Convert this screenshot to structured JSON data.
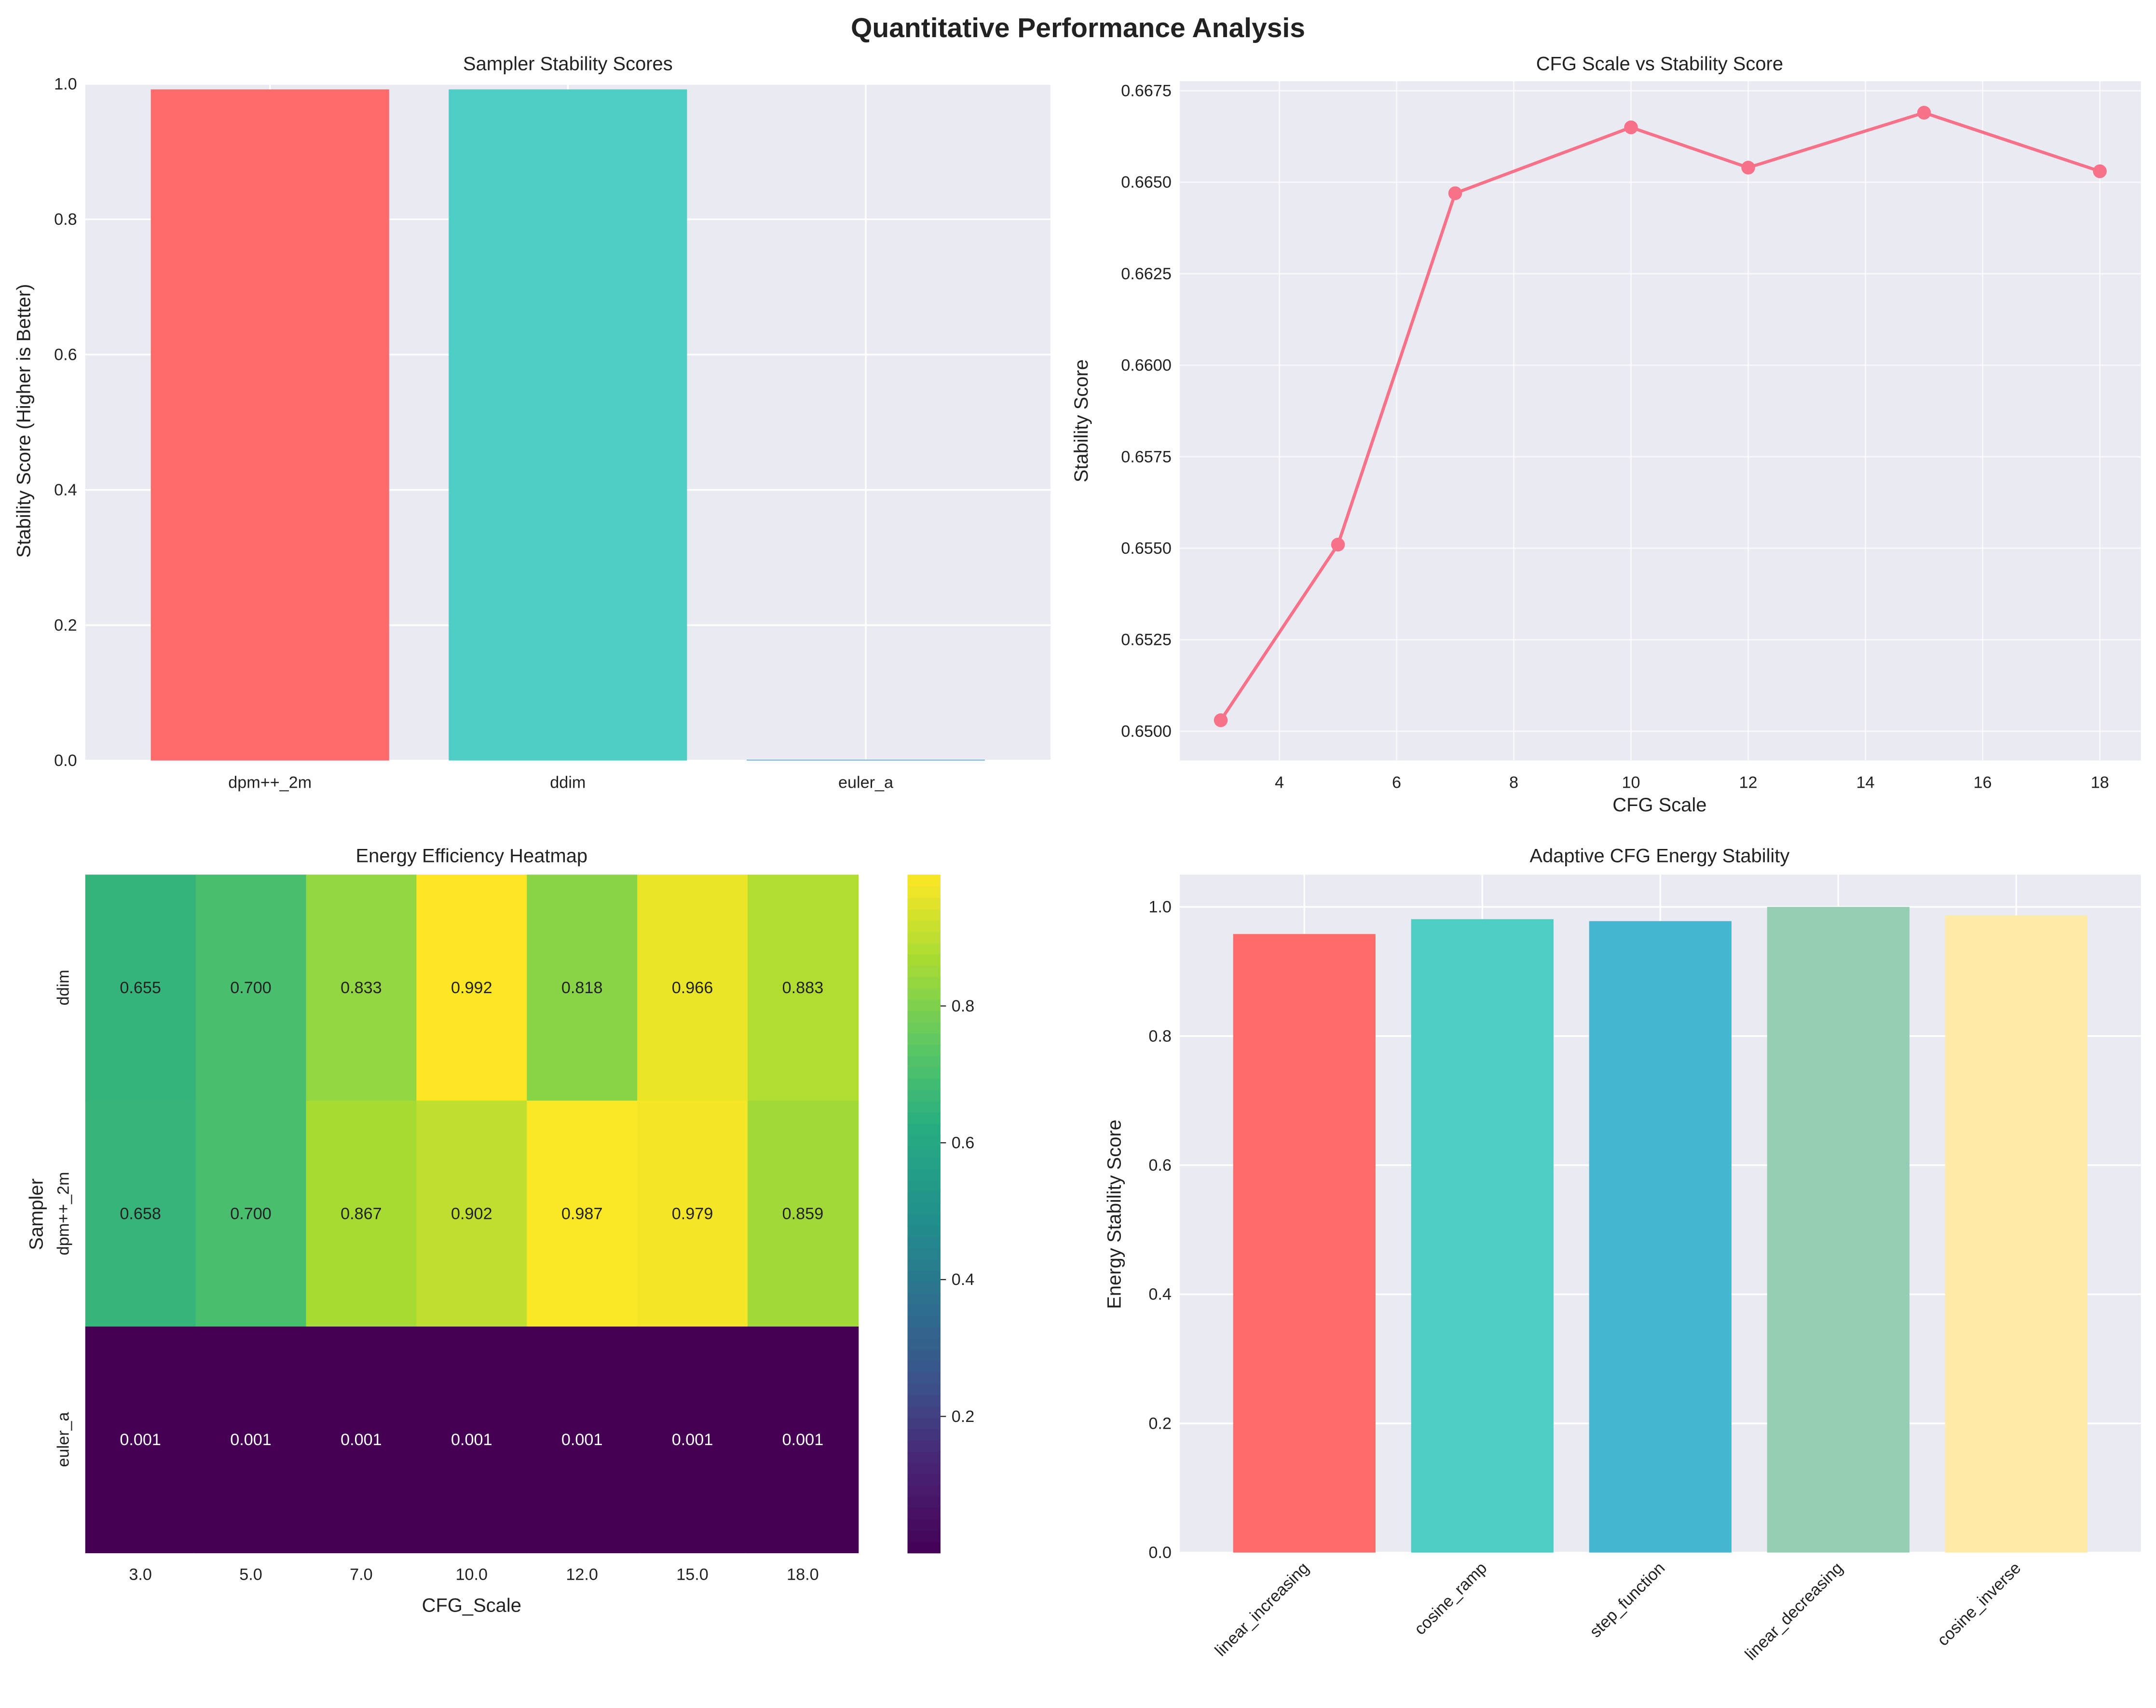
{
  "title": "Quantitative Performance Analysis",
  "chart_data": [
    {
      "type": "bar",
      "title": "Sampler Stability Scores",
      "xlabel": "",
      "ylabel": "Stability Score (Higher is Better)",
      "categories": [
        "dpm++_2m",
        "ddim",
        "euler_a"
      ],
      "values": [
        0.992,
        0.992,
        0.001
      ],
      "colors": [
        "#FF6B6B",
        "#4ECDC4",
        "#45B7D1"
      ],
      "ylim": [
        0,
        1
      ],
      "yticks": [
        "0.0",
        "0.2",
        "0.4",
        "0.6",
        "0.8",
        "1.0"
      ],
      "grid": true
    },
    {
      "type": "line",
      "title": "CFG Scale vs Stability Score",
      "xlabel": "CFG Scale",
      "ylabel": "Stability Score",
      "x": [
        3,
        5,
        7,
        10,
        12,
        15,
        18
      ],
      "y": [
        0.6503,
        0.6551,
        0.6647,
        0.6665,
        0.6654,
        0.6669,
        0.6653
      ],
      "color": "#F77189",
      "xlim": [
        2.3,
        18.7
      ],
      "ylim": [
        0.6492,
        0.6687
      ],
      "xticks": [
        "4",
        "6",
        "8",
        "10",
        "12",
        "14",
        "16",
        "18"
      ],
      "yticks": [
        "0.6500",
        "0.6525",
        "0.6550",
        "0.6575",
        "0.6600",
        "0.6625",
        "0.6650",
        "0.6675"
      ],
      "grid": true
    },
    {
      "type": "heatmap",
      "title": "Energy Efficiency Heatmap",
      "xlabel": "CFG_Scale",
      "ylabel": "Sampler",
      "x_categories": [
        "3.0",
        "5.0",
        "7.0",
        "10.0",
        "12.0",
        "15.0",
        "18.0"
      ],
      "y_categories": [
        "ddim",
        "dpm++_2m",
        "euler_a"
      ],
      "values": [
        [
          0.655,
          0.7,
          0.833,
          0.992,
          0.818,
          0.966,
          0.883
        ],
        [
          0.658,
          0.7,
          0.867,
          0.902,
          0.987,
          0.979,
          0.859
        ],
        [
          0.001,
          0.001,
          0.001,
          0.001,
          0.001,
          0.001,
          0.001
        ]
      ],
      "annotations": [
        [
          "0.655",
          "0.700",
          "0.833",
          "0.992",
          "0.818",
          "0.966",
          "0.883"
        ],
        [
          "0.658",
          "0.700",
          "0.867",
          "0.902",
          "0.987",
          "0.979",
          "0.859"
        ],
        [
          "0.001",
          "0.001",
          "0.001",
          "0.001",
          "0.001",
          "0.001",
          "0.001"
        ]
      ],
      "colormap": "viridis",
      "colorbar_range": [
        0.001,
        0.992
      ],
      "colorbar_ticks": [
        "0.2",
        "0.4",
        "0.6",
        "0.8"
      ]
    },
    {
      "type": "bar",
      "title": "Adaptive CFG Energy Stability",
      "xlabel": "",
      "ylabel": "Energy Stability Score",
      "categories": [
        "linear_increasing",
        "cosine_ramp",
        "step_function",
        "linear_decreasing",
        "cosine_inverse"
      ],
      "values": [
        0.958,
        0.981,
        0.978,
        1.0,
        0.987
      ],
      "colors": [
        "#FF6B6B",
        "#4ECDC4",
        "#45B7D1",
        "#96CEB4",
        "#FFEAA7"
      ],
      "ylim": [
        0,
        1.05
      ],
      "yticks": [
        "0.0",
        "0.2",
        "0.4",
        "0.6",
        "0.8",
        "1.0"
      ],
      "grid": true
    }
  ]
}
